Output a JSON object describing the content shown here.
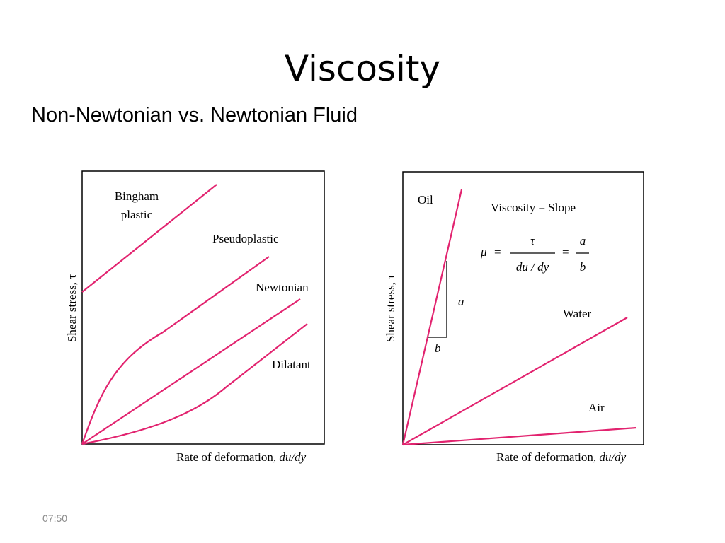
{
  "slide": {
    "title": "Viscosity",
    "subtitle": "Non-Newtonian vs. Newtonian Fluid",
    "footer_time": "07:50"
  },
  "colors": {
    "curve": "#e2236f",
    "frame": "#000000"
  },
  "left_diagram": {
    "y_axis_label": "Shear stress, τ",
    "x_axis_label": "Rate of deformation,",
    "x_axis_label_italic": "du/dy",
    "curves": {
      "bingham_line1": "Bingham",
      "bingham_line2": "plastic",
      "pseudoplastic": "Pseudoplastic",
      "newtonian": "Newtonian",
      "dilatant": "Dilatant"
    }
  },
  "right_diagram": {
    "y_axis_label": "Shear stress, τ",
    "x_axis_label": "Rate of deformation,",
    "x_axis_label_italic": "du/dy",
    "curves": {
      "oil": "Oil",
      "water": "Water",
      "air": "Air"
    },
    "formula": {
      "heading": "Viscosity = Slope",
      "mu": "μ",
      "eq1": "=",
      "tau": "τ",
      "du_dy": "du / dy",
      "eq2": "=",
      "a_num": "a",
      "b_den": "b"
    },
    "slope_triangle": {
      "a": "a",
      "b": "b"
    }
  }
}
